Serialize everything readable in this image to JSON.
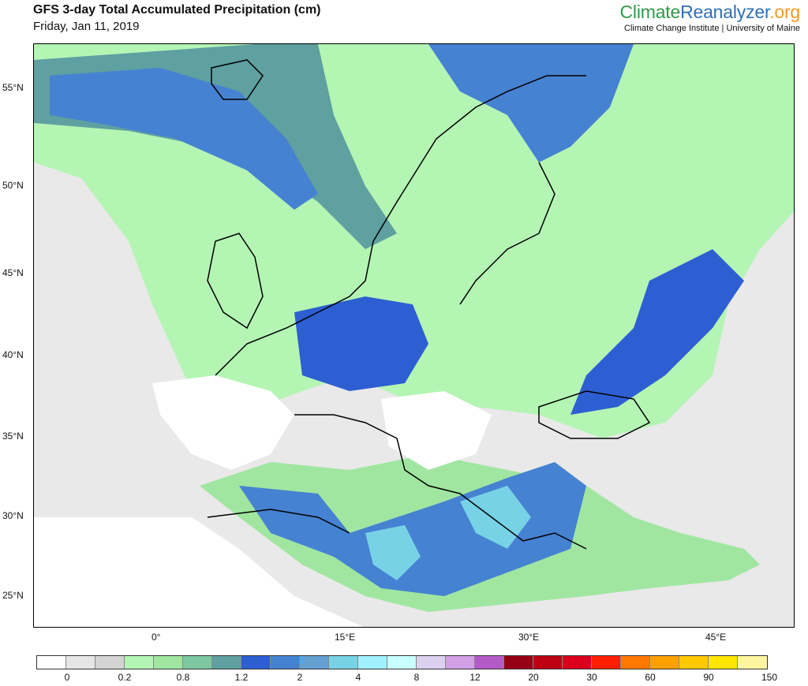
{
  "header": {
    "title": "GFS 3-day Total Accumulated Precipitation (cm)",
    "date": "Friday, Jan 11, 2019"
  },
  "brand": {
    "part1": "Climate",
    "part2": "Reanalyzer",
    "part3": ".org",
    "subtitle": "Climate Change Institute | University of Maine",
    "colors": {
      "climate": "#2e9a46",
      "reanalyzer": "#2f6fb5",
      "org": "#f39a21"
    }
  },
  "map": {
    "region": "Europe",
    "lat_labels": [
      "55°N",
      "50°N",
      "45°N",
      "40°N",
      "35°N",
      "30°N",
      "25°N"
    ],
    "lon_labels": [
      "0°",
      "15°E",
      "30°E",
      "45°E"
    ]
  },
  "legend": {
    "colors": [
      "#ffffff",
      "#e6e6e6",
      "#d4d4d4",
      "#b4f5b4",
      "#a0e6a0",
      "#7dc8a0",
      "#5fa0a0",
      "#2d5fd2",
      "#4682d2",
      "#64a0d2",
      "#78d2e6",
      "#a0f0ff",
      "#c8ffff",
      "#dcd2f0",
      "#d2a0e6",
      "#b45ac8",
      "#960014",
      "#be0014",
      "#dc001e",
      "#ff1e00",
      "#ff7800",
      "#ffa000",
      "#ffc800",
      "#ffe600",
      "#fff5a0",
      "#fffae6"
    ],
    "labels": [
      "0",
      "0.2",
      "0.8",
      "1.2",
      "2",
      "4",
      "8",
      "12",
      "20",
      "30",
      "60",
      "90",
      "150"
    ]
  }
}
